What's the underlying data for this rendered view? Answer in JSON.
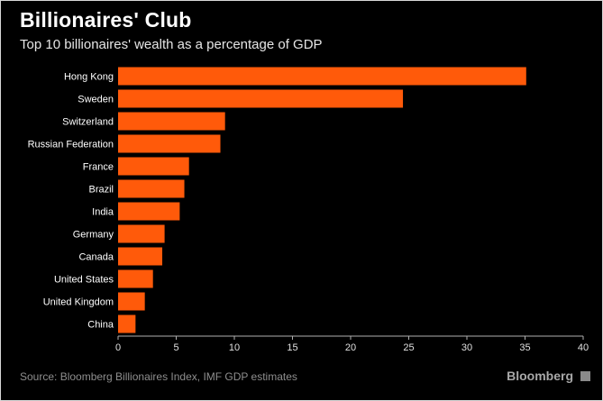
{
  "header": {
    "title": "Billionaires' Club",
    "subtitle": "Top 10 billionaires' wealth as a percentage of GDP"
  },
  "footer": {
    "source": "Source: Bloomberg Billionaires Index, IMF GDP estimates",
    "brand": "Bloomberg",
    "brand_icon": "bloomberg-logo-icon"
  },
  "colors": {
    "background": "#000000",
    "bar": "#ff5a0a",
    "axis": "#b0b0b0",
    "text": "#ffffff"
  },
  "chart_data": {
    "type": "bar",
    "orientation": "horizontal",
    "title": "Billionaires' Club",
    "subtitle": "Top 10 billionaires' wealth as a percentage of GDP",
    "xlabel": "",
    "ylabel": "",
    "xlim": [
      0,
      40
    ],
    "xticks": [
      0,
      5,
      10,
      15,
      20,
      25,
      30,
      35,
      40
    ],
    "grid": false,
    "legend": "none",
    "categories": [
      "Hong Kong",
      "Sweden",
      "Switzerland",
      "Russian Federation",
      "France",
      "Brazil",
      "India",
      "Germany",
      "Canada",
      "United States",
      "United Kingdom",
      "China"
    ],
    "values": [
      35.1,
      24.5,
      9.2,
      8.8,
      6.1,
      5.7,
      5.3,
      4.0,
      3.8,
      3.0,
      2.3,
      1.5
    ]
  }
}
